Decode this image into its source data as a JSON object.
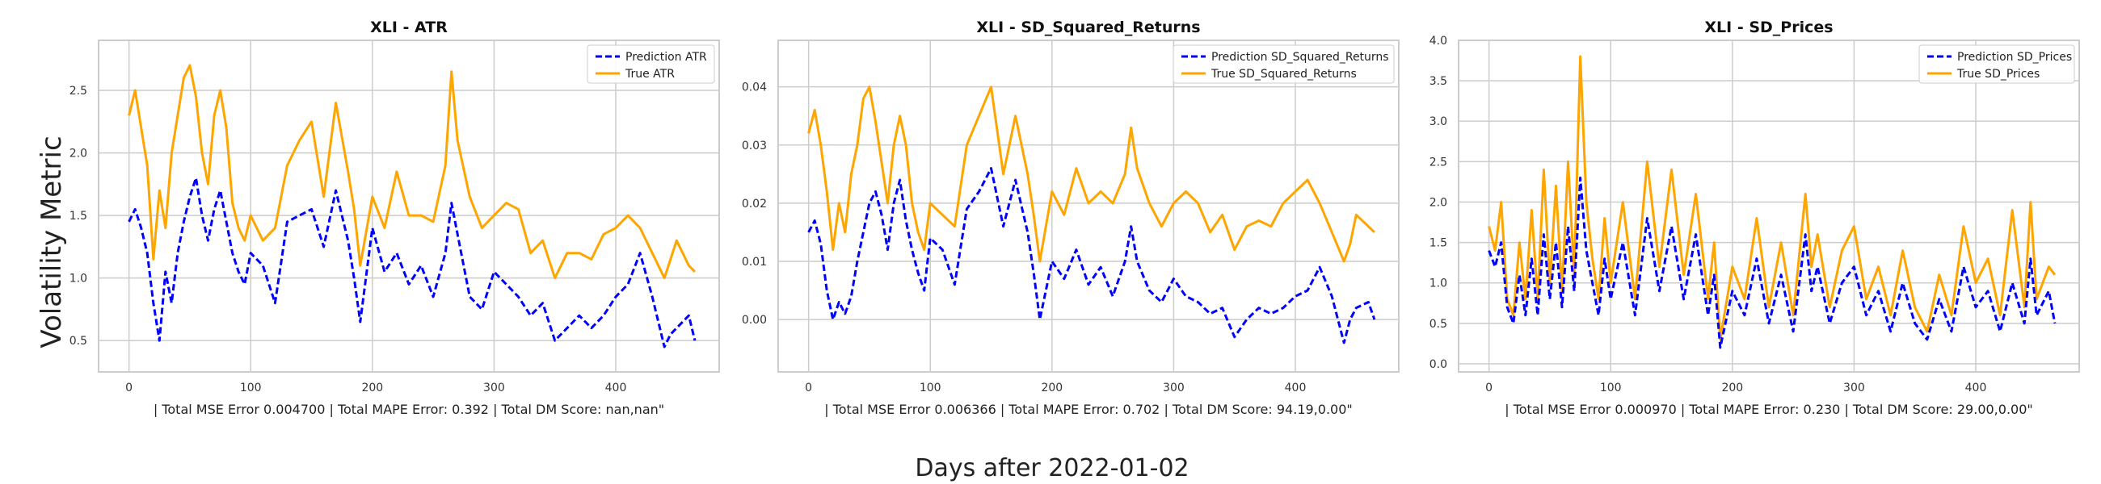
{
  "figure": {
    "ylabel": "Volatility Metric",
    "xlabel": "Days after 2022-01-02"
  },
  "colors": {
    "prediction": "#0000ff",
    "true": "#ffa500",
    "grid": "#cccccc",
    "frame": "#cccccc"
  },
  "chart_data": [
    {
      "type": "line",
      "title": "XLI - ATR",
      "xlabel": "| Total MSE Error 0.004700 | Total MAPE Error: 0.392 | Total DM Score: nan,nan\"",
      "ylabel": "",
      "xlim": [
        -25,
        485
      ],
      "ylim": [
        0.25,
        2.9
      ],
      "xticks": [
        0,
        100,
        200,
        300,
        400
      ],
      "yticks": [
        0.5,
        1.0,
        1.5,
        2.0,
        2.5
      ],
      "ytick_labels": [
        "0.5",
        "1.0",
        "1.5",
        "2.0",
        "2.5"
      ],
      "legend": "top-right",
      "grid": true,
      "series": [
        {
          "name": "Prediction ATR",
          "style": "dashed",
          "color": "#0000ff",
          "x": [
            0,
            5,
            10,
            15,
            20,
            25,
            30,
            35,
            40,
            45,
            50,
            55,
            60,
            65,
            70,
            75,
            80,
            85,
            90,
            95,
            100,
            110,
            120,
            130,
            140,
            150,
            160,
            170,
            180,
            185,
            190,
            200,
            210,
            220,
            230,
            240,
            250,
            260,
            265,
            270,
            280,
            290,
            300,
            310,
            320,
            330,
            340,
            350,
            360,
            370,
            380,
            390,
            400,
            410,
            420,
            430,
            440,
            445,
            450,
            460,
            465
          ],
          "y": [
            1.45,
            1.55,
            1.4,
            1.2,
            0.8,
            0.5,
            1.05,
            0.8,
            1.2,
            1.45,
            1.65,
            1.8,
            1.5,
            1.3,
            1.55,
            1.7,
            1.45,
            1.2,
            1.05,
            0.95,
            1.2,
            1.1,
            0.8,
            1.45,
            1.5,
            1.55,
            1.25,
            1.7,
            1.3,
            1.0,
            0.65,
            1.4,
            1.05,
            1.2,
            0.95,
            1.1,
            0.85,
            1.2,
            1.6,
            1.35,
            0.85,
            0.75,
            1.05,
            0.95,
            0.85,
            0.7,
            0.8,
            0.5,
            0.6,
            0.7,
            0.6,
            0.7,
            0.85,
            0.95,
            1.2,
            0.85,
            0.45,
            0.55,
            0.6,
            0.7,
            0.5
          ]
        },
        {
          "name": "True ATR",
          "style": "solid",
          "color": "#ffa500",
          "x": [
            0,
            5,
            10,
            15,
            20,
            25,
            30,
            35,
            40,
            45,
            50,
            55,
            60,
            65,
            70,
            75,
            80,
            85,
            90,
            95,
            100,
            110,
            120,
            130,
            140,
            150,
            160,
            170,
            180,
            185,
            190,
            200,
            210,
            220,
            230,
            240,
            250,
            260,
            265,
            270,
            280,
            290,
            300,
            310,
            320,
            330,
            340,
            350,
            360,
            370,
            380,
            390,
            400,
            410,
            420,
            430,
            440,
            445,
            450,
            460,
            465
          ],
          "y": [
            2.3,
            2.5,
            2.2,
            1.9,
            1.15,
            1.7,
            1.4,
            2.0,
            2.3,
            2.6,
            2.7,
            2.45,
            2.0,
            1.75,
            2.3,
            2.5,
            2.2,
            1.6,
            1.4,
            1.3,
            1.5,
            1.3,
            1.4,
            1.9,
            2.1,
            2.25,
            1.65,
            2.4,
            1.85,
            1.55,
            1.1,
            1.65,
            1.4,
            1.85,
            1.5,
            1.5,
            1.45,
            1.9,
            2.65,
            2.1,
            1.65,
            1.4,
            1.5,
            1.6,
            1.55,
            1.2,
            1.3,
            1.0,
            1.2,
            1.2,
            1.15,
            1.35,
            1.4,
            1.5,
            1.4,
            1.2,
            1.0,
            1.15,
            1.3,
            1.1,
            1.05
          ]
        }
      ]
    },
    {
      "type": "line",
      "title": "XLI - SD_Squared_Returns",
      "xlabel": "| Total MSE Error 0.006366 | Total MAPE Error: 0.702 | Total DM Score: 94.19,0.00\"",
      "ylabel": "",
      "xlim": [
        -25,
        485
      ],
      "ylim": [
        -0.009,
        0.048
      ],
      "xticks": [
        0,
        100,
        200,
        300,
        400
      ],
      "yticks": [
        0.0,
        0.01,
        0.02,
        0.03,
        0.04
      ],
      "ytick_labels": [
        "0.00",
        "0.01",
        "0.02",
        "0.03",
        "0.04"
      ],
      "legend": "top-right",
      "grid": true,
      "series": [
        {
          "name": "Prediction SD_Squared_Returns",
          "style": "dashed",
          "color": "#0000ff",
          "x": [
            0,
            5,
            10,
            15,
            20,
            25,
            30,
            35,
            40,
            45,
            50,
            55,
            60,
            65,
            70,
            75,
            80,
            85,
            90,
            95,
            100,
            110,
            120,
            130,
            140,
            150,
            160,
            170,
            180,
            185,
            190,
            200,
            210,
            220,
            230,
            240,
            250,
            260,
            265,
            270,
            280,
            290,
            300,
            310,
            320,
            330,
            340,
            350,
            360,
            370,
            380,
            390,
            400,
            410,
            420,
            430,
            440,
            445,
            450,
            460,
            465
          ],
          "y": [
            0.015,
            0.017,
            0.013,
            0.005,
            0.0,
            0.003,
            0.001,
            0.004,
            0.01,
            0.015,
            0.02,
            0.022,
            0.018,
            0.012,
            0.02,
            0.024,
            0.017,
            0.012,
            0.008,
            0.005,
            0.014,
            0.012,
            0.006,
            0.019,
            0.022,
            0.026,
            0.016,
            0.024,
            0.015,
            0.008,
            0.0,
            0.01,
            0.007,
            0.012,
            0.006,
            0.009,
            0.004,
            0.01,
            0.016,
            0.01,
            0.005,
            0.003,
            0.007,
            0.004,
            0.003,
            0.001,
            0.002,
            -0.003,
            0.0,
            0.002,
            0.001,
            0.002,
            0.004,
            0.005,
            0.009,
            0.004,
            -0.004,
            0.0,
            0.002,
            0.003,
            0.0
          ]
        },
        {
          "name": "True SD_Squared_Returns",
          "style": "solid",
          "color": "#ffa500",
          "x": [
            0,
            5,
            10,
            15,
            20,
            25,
            30,
            35,
            40,
            45,
            50,
            55,
            60,
            65,
            70,
            75,
            80,
            85,
            90,
            95,
            100,
            110,
            120,
            130,
            140,
            150,
            160,
            170,
            180,
            185,
            190,
            200,
            210,
            220,
            230,
            240,
            250,
            260,
            265,
            270,
            280,
            290,
            300,
            310,
            320,
            330,
            340,
            350,
            360,
            370,
            380,
            390,
            400,
            410,
            420,
            430,
            440,
            445,
            450,
            460,
            465
          ],
          "y": [
            0.032,
            0.036,
            0.03,
            0.022,
            0.012,
            0.02,
            0.015,
            0.025,
            0.03,
            0.038,
            0.04,
            0.034,
            0.027,
            0.02,
            0.03,
            0.035,
            0.03,
            0.02,
            0.015,
            0.012,
            0.02,
            0.018,
            0.016,
            0.03,
            0.035,
            0.04,
            0.025,
            0.035,
            0.025,
            0.018,
            0.01,
            0.022,
            0.018,
            0.026,
            0.02,
            0.022,
            0.02,
            0.025,
            0.033,
            0.026,
            0.02,
            0.016,
            0.02,
            0.022,
            0.02,
            0.015,
            0.018,
            0.012,
            0.016,
            0.017,
            0.016,
            0.02,
            0.022,
            0.024,
            0.02,
            0.015,
            0.01,
            0.013,
            0.018,
            0.016,
            0.015
          ]
        }
      ]
    },
    {
      "type": "line",
      "title": "XLI - SD_Prices",
      "xlabel": "| Total MSE Error 0.000970 | Total MAPE Error: 0.230 | Total DM Score: 29.00,0.00\"",
      "ylabel": "",
      "xlim": [
        -25,
        485
      ],
      "ylim": [
        -0.1,
        4.0
      ],
      "xticks": [
        0,
        100,
        200,
        300,
        400
      ],
      "yticks": [
        0.0,
        0.5,
        1.0,
        1.5,
        2.0,
        2.5,
        3.0,
        3.5,
        4.0
      ],
      "ytick_labels": [
        "0.0",
        "0.5",
        "1.0",
        "1.5",
        "2.0",
        "2.5",
        "3.0",
        "3.5",
        "4.0"
      ],
      "legend": "top-right",
      "grid": true,
      "series": [
        {
          "name": "Prediction SD_Prices",
          "style": "dashed",
          "color": "#0000ff",
          "x": [
            0,
            5,
            10,
            15,
            20,
            25,
            30,
            35,
            40,
            45,
            50,
            55,
            60,
            65,
            70,
            75,
            80,
            85,
            90,
            95,
            100,
            110,
            120,
            130,
            140,
            150,
            160,
            170,
            180,
            185,
            190,
            200,
            210,
            220,
            230,
            240,
            250,
            260,
            265,
            270,
            280,
            290,
            300,
            310,
            320,
            330,
            340,
            350,
            360,
            370,
            380,
            390,
            400,
            410,
            420,
            430,
            440,
            445,
            450,
            460,
            465
          ],
          "y": [
            1.4,
            1.2,
            1.5,
            0.7,
            0.5,
            1.1,
            0.6,
            1.3,
            0.6,
            1.6,
            0.8,
            1.5,
            0.7,
            1.7,
            0.9,
            2.3,
            1.4,
            1.0,
            0.6,
            1.3,
            0.8,
            1.5,
            0.6,
            1.8,
            0.9,
            1.7,
            0.8,
            1.6,
            0.6,
            1.1,
            0.2,
            0.9,
            0.6,
            1.3,
            0.5,
            1.1,
            0.4,
            1.6,
            0.9,
            1.2,
            0.5,
            1.0,
            1.2,
            0.6,
            0.9,
            0.4,
            1.0,
            0.5,
            0.3,
            0.8,
            0.4,
            1.2,
            0.7,
            0.9,
            0.4,
            1.0,
            0.5,
            1.3,
            0.6,
            0.9,
            0.5
          ]
        },
        {
          "name": "True SD_Prices",
          "style": "solid",
          "color": "#ffa500",
          "x": [
            0,
            5,
            10,
            15,
            20,
            25,
            30,
            35,
            40,
            45,
            50,
            55,
            60,
            65,
            70,
            75,
            80,
            85,
            90,
            95,
            100,
            110,
            120,
            130,
            140,
            150,
            160,
            170,
            180,
            185,
            190,
            200,
            210,
            220,
            230,
            240,
            250,
            260,
            265,
            270,
            280,
            290,
            300,
            310,
            320,
            330,
            340,
            350,
            360,
            370,
            380,
            390,
            400,
            410,
            420,
            430,
            440,
            445,
            450,
            460,
            465
          ],
          "y": [
            1.7,
            1.4,
            2.0,
            0.8,
            0.6,
            1.5,
            0.8,
            1.9,
            0.8,
            2.4,
            1.0,
            2.2,
            0.9,
            2.5,
            1.1,
            3.8,
            2.0,
            1.3,
            0.8,
            1.8,
            1.0,
            2.0,
            0.8,
            2.5,
            1.2,
            2.4,
            1.1,
            2.1,
            0.8,
            1.5,
            0.3,
            1.2,
            0.8,
            1.8,
            0.7,
            1.5,
            0.6,
            2.1,
            1.2,
            1.6,
            0.7,
            1.4,
            1.7,
            0.8,
            1.2,
            0.6,
            1.4,
            0.7,
            0.4,
            1.1,
            0.6,
            1.7,
            1.0,
            1.3,
            0.6,
            1.9,
            0.7,
            2.0,
            0.8,
            1.2,
            1.1
          ]
        }
      ]
    }
  ]
}
